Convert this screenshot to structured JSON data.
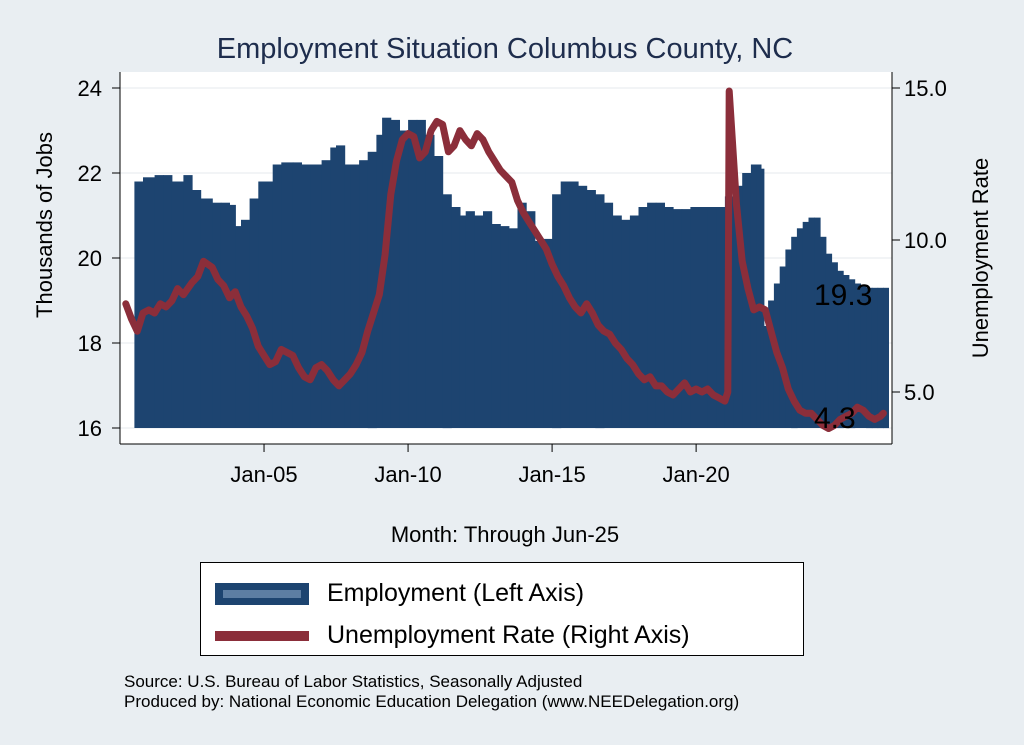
{
  "chart_data": {
    "type": "bar+line",
    "title": "Employment Situation Columbus  County, NC",
    "xlabel": "Month: Through Jun-25",
    "ylabel_left": "Thousands of Jobs",
    "ylabel_right": "Unemployment Rate",
    "x_range": [
      2000.0,
      2026.8
    ],
    "ylim_left": [
      16,
      24
    ],
    "ylim_right": [
      3.45,
      15.3
    ],
    "x_ticks": [
      {
        "label": "Jan-05",
        "t": 2005.0
      },
      {
        "label": "Jan-10",
        "t": 2010.0
      },
      {
        "label": "Jan-15",
        "t": 2015.0
      },
      {
        "label": "Jan-20",
        "t": 2020.0
      }
    ],
    "y_ticks_left": [
      16,
      18,
      20,
      22,
      24
    ],
    "y_ticks_right": [
      {
        "label": "5.0",
        "v": 5
      },
      {
        "label": "10.0",
        "v": 10
      },
      {
        "label": "15.0",
        "v": 15
      }
    ],
    "series": [
      {
        "name": "Employment (Left Axis)",
        "axis": "left",
        "kind": "bar",
        "color": "#1d4470",
        "points": [
          [
            2000.5,
            21.8
          ],
          [
            2000.8,
            21.9
          ],
          [
            2001.2,
            21.95
          ],
          [
            2001.5,
            21.95
          ],
          [
            2001.8,
            21.8
          ],
          [
            2002.2,
            21.95
          ],
          [
            2002.5,
            21.6
          ],
          [
            2002.8,
            21.4
          ],
          [
            2003.2,
            21.3
          ],
          [
            2003.5,
            21.3
          ],
          [
            2003.8,
            21.25
          ],
          [
            2004.0,
            20.75
          ],
          [
            2004.2,
            20.9
          ],
          [
            2004.5,
            21.4
          ],
          [
            2004.8,
            21.8
          ],
          [
            2005.0,
            21.8
          ],
          [
            2005.3,
            22.2
          ],
          [
            2005.6,
            22.25
          ],
          [
            2006.0,
            22.25
          ],
          [
            2006.3,
            22.2
          ],
          [
            2006.6,
            22.2
          ],
          [
            2007.0,
            22.3
          ],
          [
            2007.3,
            22.6
          ],
          [
            2007.5,
            22.65
          ],
          [
            2007.8,
            22.2
          ],
          [
            2008.0,
            22.2
          ],
          [
            2008.3,
            22.3
          ],
          [
            2008.6,
            22.5
          ],
          [
            2008.9,
            22.9
          ],
          [
            2009.1,
            23.3
          ],
          [
            2009.4,
            23.25
          ],
          [
            2009.7,
            23.0
          ],
          [
            2010.0,
            23.25
          ],
          [
            2010.3,
            23.25
          ],
          [
            2010.6,
            22.9
          ],
          [
            2010.9,
            22.4
          ],
          [
            2011.2,
            21.5
          ],
          [
            2011.5,
            21.2
          ],
          [
            2011.8,
            21.0
          ],
          [
            2012.0,
            21.1
          ],
          [
            2012.3,
            21.0
          ],
          [
            2012.6,
            21.1
          ],
          [
            2012.9,
            20.8
          ],
          [
            2013.2,
            20.75
          ],
          [
            2013.5,
            20.7
          ],
          [
            2013.8,
            21.3
          ],
          [
            2014.1,
            21.1
          ],
          [
            2014.4,
            20.4
          ],
          [
            2014.7,
            20.45
          ],
          [
            2015.0,
            21.5
          ],
          [
            2015.3,
            21.8
          ],
          [
            2015.6,
            21.8
          ],
          [
            2015.9,
            21.7
          ],
          [
            2016.2,
            21.6
          ],
          [
            2016.5,
            21.5
          ],
          [
            2016.8,
            21.3
          ],
          [
            2017.1,
            21.0
          ],
          [
            2017.4,
            20.9
          ],
          [
            2017.7,
            21.0
          ],
          [
            2018.0,
            21.2
          ],
          [
            2018.3,
            21.3
          ],
          [
            2018.6,
            21.3
          ],
          [
            2018.9,
            21.2
          ],
          [
            2019.2,
            21.15
          ],
          [
            2019.5,
            21.15
          ],
          [
            2019.8,
            21.2
          ],
          [
            2020.1,
            21.2
          ],
          [
            2020.4,
            21.2
          ],
          [
            2020.7,
            21.2
          ],
          [
            2021.0,
            21.45
          ],
          [
            2021.3,
            21.7
          ],
          [
            2021.6,
            22.0
          ],
          [
            2021.9,
            22.2
          ],
          [
            2022.1,
            22.2
          ],
          [
            2022.25,
            22.1
          ],
          [
            2022.35,
            18.4
          ],
          [
            2022.5,
            19.0
          ],
          [
            2022.7,
            19.4
          ],
          [
            2022.9,
            19.8
          ],
          [
            2023.1,
            20.2
          ],
          [
            2023.3,
            20.5
          ],
          [
            2023.5,
            20.7
          ],
          [
            2023.7,
            20.85
          ],
          [
            2023.9,
            20.95
          ],
          [
            2024.1,
            20.95
          ],
          [
            2024.3,
            20.5
          ],
          [
            2024.5,
            20.1
          ],
          [
            2024.7,
            19.9
          ],
          [
            2024.9,
            19.7
          ],
          [
            2025.1,
            19.6
          ],
          [
            2025.3,
            19.5
          ],
          [
            2025.5,
            19.4
          ],
          [
            2025.7,
            19.35
          ],
          [
            2025.9,
            19.3
          ],
          [
            2026.1,
            19.3
          ],
          [
            2026.3,
            19.3
          ],
          [
            2026.5,
            19.3
          ]
        ]
      },
      {
        "name": "Unemployment Rate (Right Axis)",
        "axis": "right",
        "kind": "line",
        "color": "#8b2e3a",
        "points": [
          [
            2000.2,
            7.9
          ],
          [
            2000.4,
            7.4
          ],
          [
            2000.6,
            7.0
          ],
          [
            2000.8,
            7.6
          ],
          [
            2001.0,
            7.7
          ],
          [
            2001.2,
            7.6
          ],
          [
            2001.4,
            7.9
          ],
          [
            2001.6,
            7.8
          ],
          [
            2001.8,
            8.0
          ],
          [
            2002.0,
            8.4
          ],
          [
            2002.2,
            8.2
          ],
          [
            2002.5,
            8.6
          ],
          [
            2002.7,
            8.8
          ],
          [
            2002.9,
            9.3
          ],
          [
            2003.2,
            9.1
          ],
          [
            2003.4,
            8.7
          ],
          [
            2003.6,
            8.5
          ],
          [
            2003.8,
            8.1
          ],
          [
            2004.0,
            8.3
          ],
          [
            2004.2,
            7.8
          ],
          [
            2004.4,
            7.5
          ],
          [
            2004.6,
            7.1
          ],
          [
            2004.8,
            6.5
          ],
          [
            2005.0,
            6.2
          ],
          [
            2005.2,
            5.9
          ],
          [
            2005.4,
            6.0
          ],
          [
            2005.6,
            6.4
          ],
          [
            2005.8,
            6.3
          ],
          [
            2006.0,
            6.2
          ],
          [
            2006.2,
            5.8
          ],
          [
            2006.4,
            5.5
          ],
          [
            2006.6,
            5.4
          ],
          [
            2006.8,
            5.8
          ],
          [
            2007.0,
            5.9
          ],
          [
            2007.2,
            5.7
          ],
          [
            2007.4,
            5.4
          ],
          [
            2007.6,
            5.2
          ],
          [
            2007.8,
            5.4
          ],
          [
            2008.0,
            5.6
          ],
          [
            2008.2,
            5.9
          ],
          [
            2008.4,
            6.3
          ],
          [
            2008.6,
            7.0
          ],
          [
            2008.8,
            7.6
          ],
          [
            2009.0,
            8.2
          ],
          [
            2009.2,
            9.5
          ],
          [
            2009.4,
            11.5
          ],
          [
            2009.6,
            12.6
          ],
          [
            2009.8,
            13.3
          ],
          [
            2010.0,
            13.5
          ],
          [
            2010.2,
            13.4
          ],
          [
            2010.4,
            12.7
          ],
          [
            2010.6,
            12.9
          ],
          [
            2010.8,
            13.6
          ],
          [
            2011.0,
            13.9
          ],
          [
            2011.2,
            13.8
          ],
          [
            2011.4,
            12.9
          ],
          [
            2011.6,
            13.1
          ],
          [
            2011.8,
            13.6
          ],
          [
            2012.0,
            13.3
          ],
          [
            2012.2,
            13.1
          ],
          [
            2012.4,
            13.5
          ],
          [
            2012.6,
            13.3
          ],
          [
            2012.8,
            12.9
          ],
          [
            2013.0,
            12.6
          ],
          [
            2013.2,
            12.3
          ],
          [
            2013.4,
            12.1
          ],
          [
            2013.6,
            11.9
          ],
          [
            2013.8,
            11.3
          ],
          [
            2014.0,
            10.9
          ],
          [
            2014.2,
            10.6
          ],
          [
            2014.4,
            10.3
          ],
          [
            2014.6,
            10.0
          ],
          [
            2014.8,
            9.7
          ],
          [
            2015.0,
            9.2
          ],
          [
            2015.2,
            8.8
          ],
          [
            2015.4,
            8.5
          ],
          [
            2015.6,
            8.1
          ],
          [
            2015.8,
            7.8
          ],
          [
            2016.0,
            7.6
          ],
          [
            2016.2,
            7.9
          ],
          [
            2016.4,
            7.6
          ],
          [
            2016.6,
            7.2
          ],
          [
            2016.8,
            7.0
          ],
          [
            2017.0,
            6.9
          ],
          [
            2017.2,
            6.6
          ],
          [
            2017.4,
            6.4
          ],
          [
            2017.6,
            6.1
          ],
          [
            2017.8,
            5.9
          ],
          [
            2018.0,
            5.6
          ],
          [
            2018.2,
            5.4
          ],
          [
            2018.4,
            5.5
          ],
          [
            2018.6,
            5.2
          ],
          [
            2018.8,
            5.2
          ],
          [
            2019.0,
            5.0
          ],
          [
            2019.2,
            4.9
          ],
          [
            2019.4,
            5.1
          ],
          [
            2019.6,
            5.3
          ],
          [
            2019.8,
            5.0
          ],
          [
            2020.0,
            5.1
          ],
          [
            2020.2,
            5.0
          ],
          [
            2020.4,
            5.1
          ],
          [
            2020.6,
            4.9
          ],
          [
            2020.8,
            4.8
          ],
          [
            2021.0,
            4.7
          ],
          [
            2021.1,
            5.0
          ],
          [
            2021.15,
            14.9
          ],
          [
            2021.4,
            11.2
          ],
          [
            2021.6,
            9.3
          ],
          [
            2021.8,
            8.4
          ],
          [
            2022.0,
            7.7
          ],
          [
            2022.2,
            7.8
          ],
          [
            2022.4,
            7.7
          ],
          [
            2022.6,
            7.0
          ],
          [
            2022.8,
            6.3
          ],
          [
            2023.0,
            5.8
          ],
          [
            2023.2,
            5.1
          ],
          [
            2023.4,
            4.7
          ],
          [
            2023.6,
            4.4
          ],
          [
            2023.8,
            4.3
          ],
          [
            2024.0,
            4.3
          ],
          [
            2024.2,
            4.1
          ],
          [
            2024.4,
            3.9
          ],
          [
            2024.6,
            3.8
          ],
          [
            2024.8,
            3.9
          ],
          [
            2025.0,
            4.1
          ],
          [
            2025.2,
            4.2
          ],
          [
            2025.4,
            4.3
          ],
          [
            2025.6,
            4.5
          ],
          [
            2025.8,
            4.4
          ],
          [
            2026.0,
            4.2
          ],
          [
            2026.2,
            4.1
          ],
          [
            2026.4,
            4.2
          ],
          [
            2026.5,
            4.3
          ]
        ]
      }
    ],
    "end_labels": {
      "employment": "19.3",
      "unemployment": "4.3"
    },
    "legend": [
      {
        "label": "Employment (Left Axis)"
      },
      {
        "label": "Unemployment Rate (Right Axis)"
      }
    ]
  },
  "source_line1": "Source: U.S. Bureau of Labor Statistics, Seasonally Adjusted",
  "source_line2": "Produced by: National Economic Education Delegation (www.NEEDelegation.org)"
}
